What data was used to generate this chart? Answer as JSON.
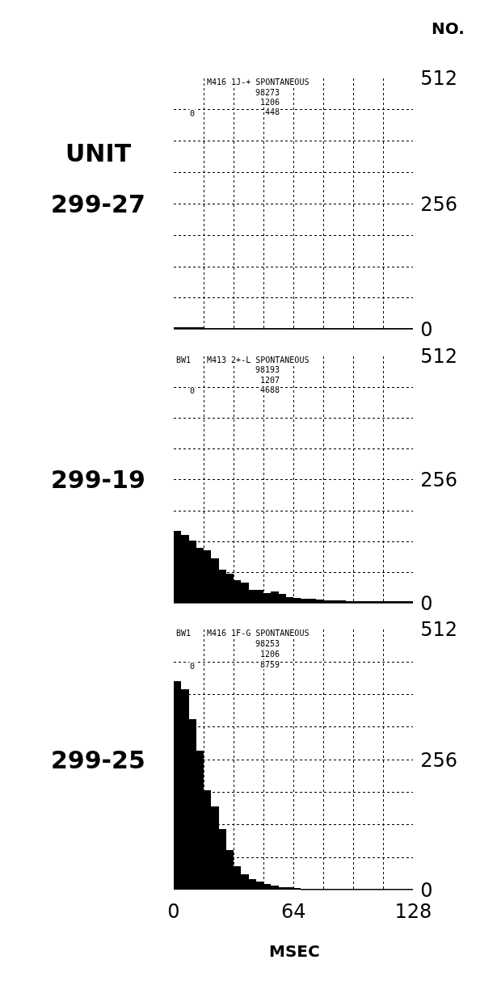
{
  "chart_data": [
    {
      "type": "histogram",
      "title": "299-27",
      "ylabel": "NO.",
      "color": "#000000",
      "annotations": [
        "UNIT",
        "0",
        "M416 1J-+ SPONTANEOUS",
        "98273",
        "1206",
        "448"
      ],
      "bins": [
        0,
        4,
        8,
        12,
        16,
        20,
        24,
        28,
        32,
        36,
        40,
        44,
        48,
        52,
        56,
        60,
        64,
        68,
        72,
        76,
        80,
        84,
        88,
        92,
        96,
        100,
        104,
        108,
        112,
        116,
        120,
        124,
        128
      ],
      "values": [
        4,
        4,
        4,
        4,
        3,
        3,
        3,
        3,
        3,
        3,
        3,
        3,
        3,
        3,
        3,
        3,
        3,
        3,
        3,
        3,
        3,
        3,
        3,
        3,
        3,
        3,
        3,
        3,
        3,
        3,
        3,
        3
      ],
      "xlim": [
        0,
        128
      ],
      "ylim": [
        0,
        512
      ],
      "xticks": [
        0,
        {
          "value": 16,
          "label": null
        },
        {
          "value": 32,
          "label": null
        },
        {
          "value": 48,
          "label": null
        },
        64,
        {
          "value": 80,
          "label": null
        },
        {
          "value": 96,
          "label": null
        },
        {
          "value": 112,
          "label": null
        },
        128
      ],
      "yticks": [
        0,
        {
          "value": 64,
          "label": null
        },
        {
          "value": 128,
          "label": null
        },
        {
          "value": 192,
          "label": null
        },
        256,
        {
          "value": 320,
          "label": null
        },
        {
          "value": 384,
          "label": null
        },
        {
          "value": 448,
          "label": null
        },
        512
      ],
      "grid": true,
      "tick_labels": "y"
    },
    {
      "type": "histogram",
      "title": "299-19",
      "color": "#000000",
      "annotations": [
        "BW1",
        "0",
        "M413 2+-L SPONTANEOUS",
        "98193",
        "1207",
        "4688"
      ],
      "bins": [
        0,
        4,
        8,
        12,
        16,
        20,
        24,
        28,
        32,
        36,
        40,
        44,
        48,
        52,
        56,
        60,
        64,
        68,
        72,
        76,
        80,
        84,
        88,
        92,
        96,
        100,
        104,
        108,
        112,
        116,
        120,
        124,
        128
      ],
      "values": [
        150,
        142,
        131,
        115,
        110,
        93,
        70,
        62,
        49,
        44,
        28,
        28,
        21,
        25,
        19,
        13,
        12,
        10,
        10,
        8,
        7,
        6,
        6,
        5,
        5,
        5,
        4,
        4,
        4,
        4,
        4,
        4
      ],
      "xlim": [
        0,
        128
      ],
      "ylim": [
        0,
        512
      ],
      "xticks": [
        0,
        {
          "value": 16,
          "label": null
        },
        {
          "value": 32,
          "label": null
        },
        {
          "value": 48,
          "label": null
        },
        64,
        {
          "value": 80,
          "label": null
        },
        {
          "value": 96,
          "label": null
        },
        {
          "value": 112,
          "label": null
        },
        128
      ],
      "yticks": [
        0,
        {
          "value": 64,
          "label": null
        },
        {
          "value": 128,
          "label": null
        },
        {
          "value": 192,
          "label": null
        },
        256,
        {
          "value": 320,
          "label": null
        },
        {
          "value": 384,
          "label": null
        },
        {
          "value": 448,
          "label": null
        },
        512
      ],
      "grid": true,
      "tick_labels": "y"
    },
    {
      "type": "histogram",
      "title": "299-25",
      "xlabel": "MSEC",
      "color": "#000000",
      "annotations": [
        "BW1",
        "0",
        "M416 1F-G SPONTANEOUS",
        "98253",
        "1206",
        "8759"
      ],
      "bins": [
        0,
        4,
        8,
        12,
        16,
        20,
        24,
        28,
        32,
        36,
        40,
        44,
        48,
        52,
        56,
        60,
        64,
        68,
        72,
        76,
        80,
        84,
        88,
        92,
        96,
        100,
        104,
        108,
        112,
        116,
        120,
        124,
        128
      ],
      "values": [
        410,
        395,
        336,
        274,
        196,
        165,
        119,
        78,
        47,
        31,
        21,
        16,
        11,
        8,
        6,
        5,
        4,
        3,
        3,
        3,
        2,
        2,
        2,
        2,
        2,
        2,
        2,
        2,
        2,
        2,
        2,
        2
      ],
      "xlim": [
        0,
        128
      ],
      "ylim": [
        0,
        512
      ],
      "xticks": [
        0,
        {
          "value": 16,
          "label": null
        },
        {
          "value": 32,
          "label": null
        },
        {
          "value": 48,
          "label": null
        },
        64,
        {
          "value": 80,
          "label": null
        },
        {
          "value": 96,
          "label": null
        },
        {
          "value": 112,
          "label": null
        },
        128
      ],
      "yticks": [
        0,
        {
          "value": 64,
          "label": null
        },
        {
          "value": 128,
          "label": null
        },
        {
          "value": 192,
          "label": null
        },
        256,
        {
          "value": 320,
          "label": null
        },
        {
          "value": 384,
          "label": null
        },
        {
          "value": 448,
          "label": null
        },
        512
      ],
      "grid": true
    }
  ]
}
